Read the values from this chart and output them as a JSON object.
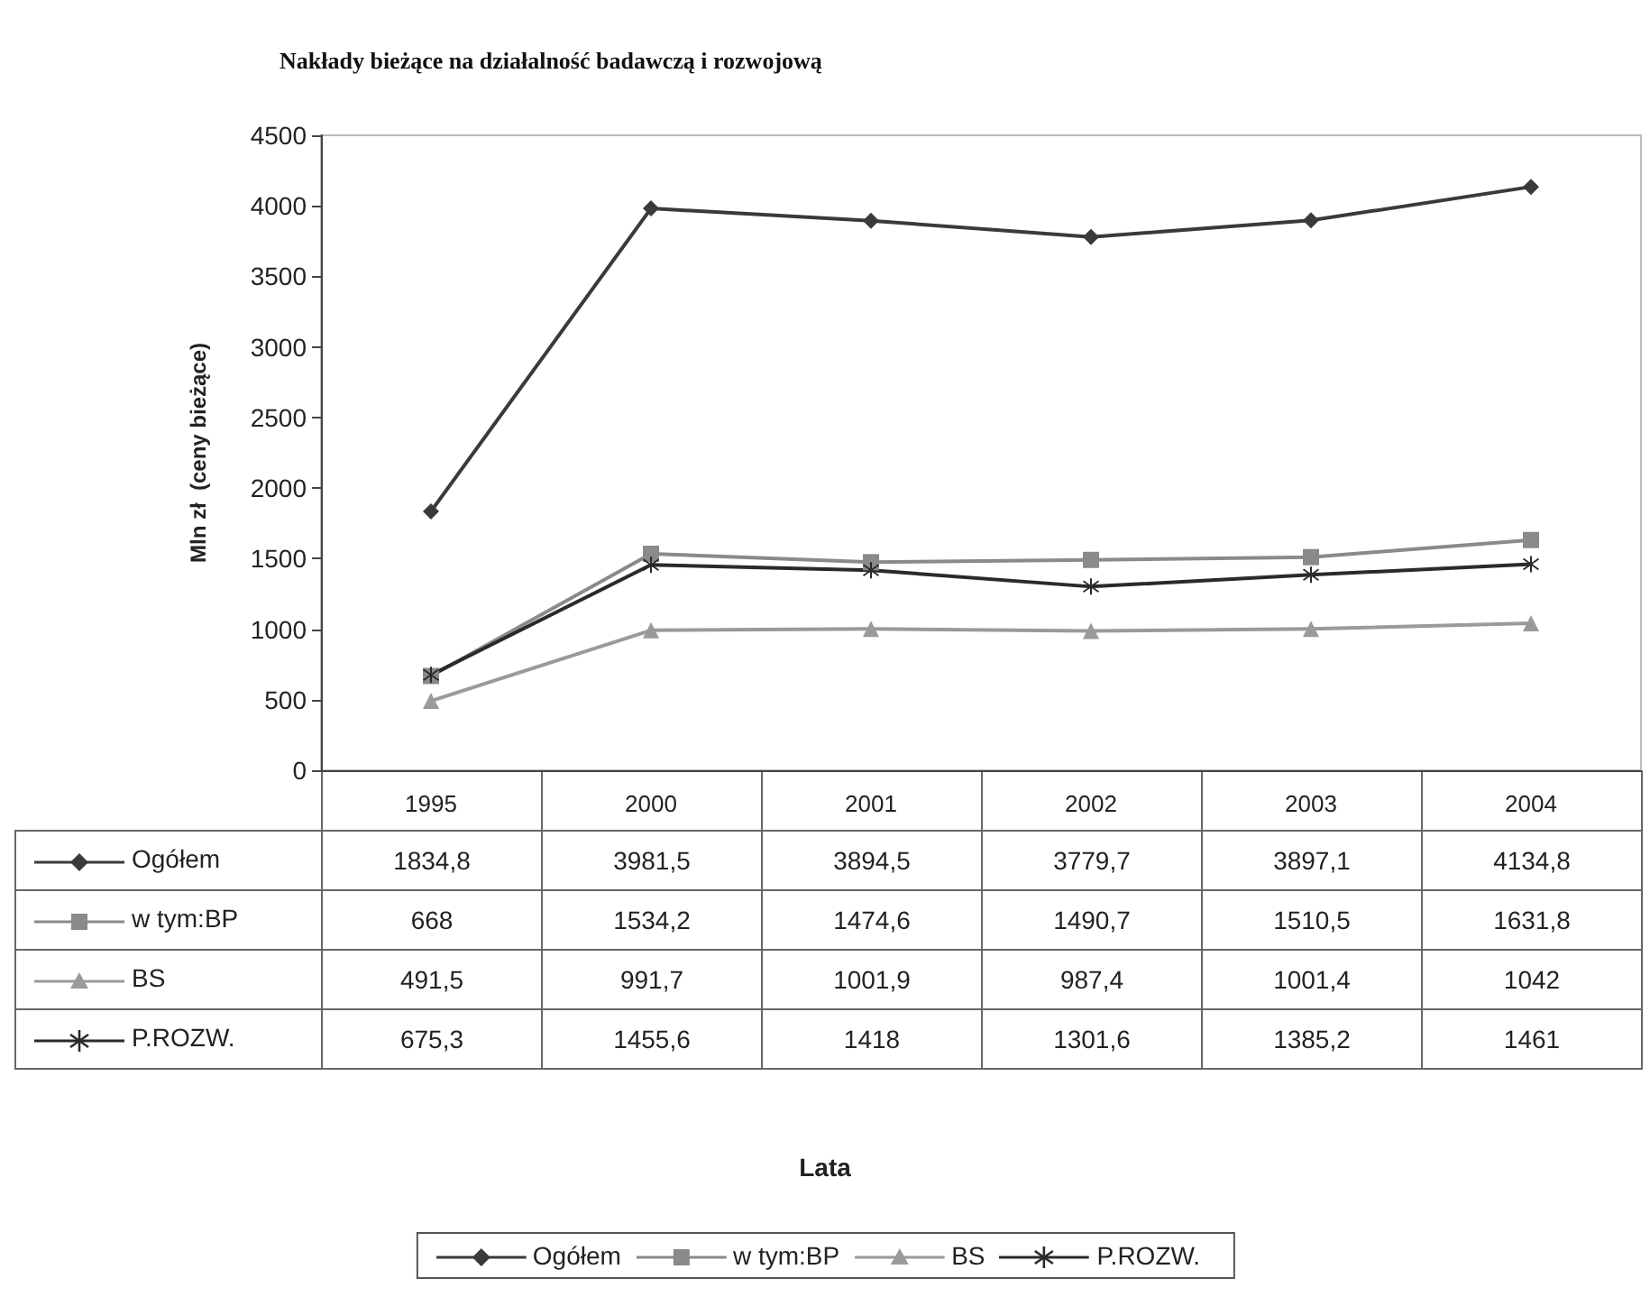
{
  "chart_data": {
    "type": "line",
    "title": "Nakłady bieżące na działalność badawczą i rozwojową",
    "annotations": [
      "Lata"
    ],
    "ylabel": "Mln zł  (ceny bieżące)",
    "categories": [
      "1995",
      "2000",
      "2001",
      "2002",
      "2003",
      "2004"
    ],
    "ylim": [
      0,
      4500
    ],
    "yticks": [
      0,
      500,
      1000,
      1500,
      2000,
      2500,
      3000,
      3500,
      4000,
      4500
    ],
    "grid": false,
    "legend": "bottom",
    "series": [
      {
        "name": "Ogółem",
        "color": "#3a3a3a",
        "marker": "diamond",
        "values": [
          1834.8,
          3981.5,
          3894.5,
          3779.7,
          3897.1,
          4134.8
        ],
        "value_labels": [
          "1834,8",
          "3981,5",
          "3894,5",
          "3779,7",
          "3897,1",
          "4134,8"
        ]
      },
      {
        "name": "w tym:BP",
        "color": "#8a8a8a",
        "marker": "square",
        "values": [
          668,
          1534.2,
          1474.6,
          1490.7,
          1510.5,
          1631.8
        ],
        "value_labels": [
          "668",
          "1534,2",
          "1474,6",
          "1490,7",
          "1510,5",
          "1631,8"
        ]
      },
      {
        "name": "BS",
        "color": "#9a9a9a",
        "marker": "triangle",
        "values": [
          491.5,
          991.7,
          1001.9,
          987.4,
          1001.4,
          1042
        ],
        "value_labels": [
          "491,5",
          "991,7",
          "1001,9",
          "987,4",
          "1001,4",
          "1042"
        ]
      },
      {
        "name": "P.ROZW.",
        "color": "#2a2a2a",
        "marker": "cross",
        "values": [
          675.3,
          1455.6,
          1418,
          1301.6,
          1385.2,
          1461
        ],
        "value_labels": [
          "675,3",
          "1455,6",
          "1418",
          "1301,6",
          "1385,2",
          "1461"
        ]
      }
    ]
  }
}
